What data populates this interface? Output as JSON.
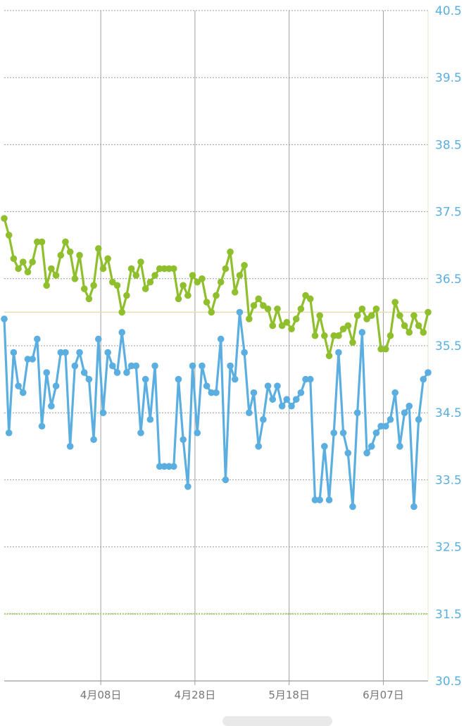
{
  "colors": {
    "series_top": "#8fbf2c",
    "series_bottom": "#5aaee0",
    "grid": "#999999",
    "axis_label": "#5aaee0",
    "threshold_line": "#e8ddb0",
    "threshold_dotted": "#a8cf6a"
  },
  "chart_data": {
    "type": "line",
    "ylim": [
      30.5,
      40.5
    ],
    "yticks": [
      "40.5",
      "39.5",
      "38.5",
      "37.5",
      "36.5",
      "35.5",
      "34.5",
      "33.5",
      "32.5",
      "31.5",
      "30.5"
    ],
    "xticks": [
      {
        "label": "4月08日",
        "index": 20.5
      },
      {
        "label": "4月28日",
        "index": 40.5
      },
      {
        "label": "5月18日",
        "index": 60.5
      },
      {
        "label": "6月07日",
        "index": 80.5
      }
    ],
    "reference_lines": [
      {
        "y": 36.0,
        "style": "solid"
      },
      {
        "y": 31.5,
        "style": "dotted"
      }
    ],
    "series": [
      {
        "color": "#8fbf2c",
        "values": [
          37.4,
          37.15,
          36.8,
          36.65,
          36.75,
          36.6,
          36.75,
          37.05,
          37.05,
          36.4,
          36.65,
          36.55,
          36.85,
          37.05,
          36.9,
          36.5,
          36.85,
          36.35,
          36.2,
          36.4,
          36.95,
          36.65,
          36.8,
          36.45,
          36.4,
          36.0,
          36.25,
          36.65,
          36.55,
          36.75,
          36.35,
          36.45,
          36.55,
          36.65,
          36.65,
          36.65,
          36.65,
          36.2,
          36.4,
          36.25,
          36.55,
          36.45,
          36.5,
          36.15,
          36.0,
          36.25,
          36.45,
          36.65,
          36.9,
          36.3,
          36.55,
          36.7,
          35.9,
          36.1,
          36.2,
          36.1,
          36.05,
          35.8,
          36.05,
          35.8,
          35.85,
          35.75,
          35.9,
          36.05,
          36.25,
          36.2,
          35.65,
          35.95,
          35.65,
          35.35,
          35.65,
          35.65,
          35.75,
          35.8,
          35.55,
          35.95,
          36.05,
          35.9,
          35.95,
          36.05,
          35.45,
          35.45,
          35.65,
          36.15,
          35.95,
          35.8,
          35.7,
          35.95,
          35.8,
          35.7,
          36.0
        ]
      },
      {
        "color": "#5aaee0",
        "values": [
          35.9,
          34.2,
          35.4,
          34.9,
          34.8,
          35.3,
          35.3,
          35.6,
          34.3,
          35.1,
          34.6,
          34.9,
          35.4,
          35.4,
          34.0,
          35.2,
          35.4,
          35.1,
          35.0,
          34.1,
          35.6,
          34.5,
          35.4,
          35.2,
          35.1,
          35.7,
          35.1,
          35.2,
          35.2,
          34.2,
          35.0,
          34.4,
          35.2,
          33.7,
          33.7,
          33.7,
          33.7,
          35.0,
          34.1,
          33.4,
          35.2,
          34.2,
          35.2,
          34.9,
          34.8,
          34.8,
          35.6,
          33.5,
          35.2,
          35.0,
          36.0,
          35.4,
          34.5,
          34.8,
          34.0,
          34.4,
          34.9,
          34.7,
          34.9,
          34.6,
          34.7,
          34.6,
          34.7,
          34.8,
          35.0,
          35.0,
          33.2,
          33.2,
          34.0,
          33.2,
          34.2,
          35.4,
          34.2,
          33.9,
          33.1,
          34.5,
          35.7,
          33.9,
          34.0,
          34.2,
          34.3,
          34.3,
          34.4,
          34.8,
          34.0,
          34.5,
          34.6,
          33.1,
          34.4,
          35.0,
          35.1
        ]
      }
    ]
  }
}
